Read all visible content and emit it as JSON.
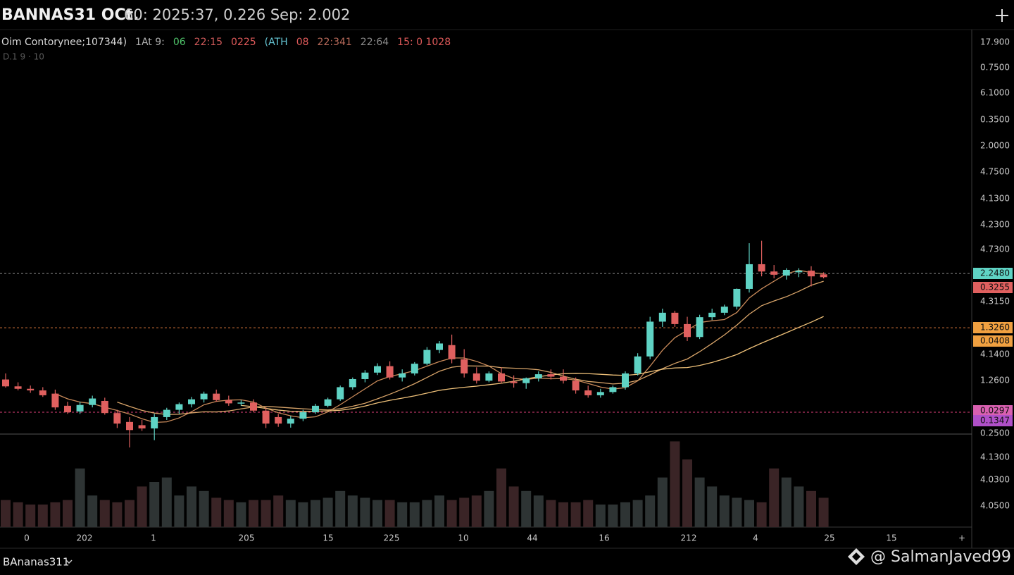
{
  "header": {
    "title": "BANNAS31 OCt.",
    "title_info": "60: 2025:37, 0.226 Sep: 2.002",
    "info_items": [
      {
        "text": "Oim Contorynee;107344)",
        "color": "#d8d8d8"
      },
      {
        "text": "1At 9:",
        "color": "#b0b0b0"
      },
      {
        "text": "06",
        "color": "#4fc36a"
      },
      {
        "text": "22:15",
        "color": "#d05a5a"
      },
      {
        "text": "0225",
        "color": "#e05a5a"
      },
      {
        "text": "(ATH",
        "color": "#66c7d6"
      },
      {
        "text": "08",
        "color": "#e05a5a"
      },
      {
        "text": "22:341",
        "color": "#b86a5a"
      },
      {
        "text": "22:64",
        "color": "#8a8a8a"
      },
      {
        "text": "15: 0 1028",
        "color": "#e05a5a"
      }
    ],
    "sub_info": "D.1 9 · 10"
  },
  "chart_data": {
    "type": "candlestick",
    "up_color": "#5fd3c4",
    "down_color": "#e0605f",
    "ylim": [
      -4,
      100
    ],
    "open": [
      13.5,
      11.8,
      11.2,
      10.8,
      10.0,
      7.0,
      5.6,
      7.2,
      8.2,
      5.2,
      3.0,
      2.2,
      1.4,
      4.2,
      6.0,
      7.4,
      8.6,
      10.0,
      8.4,
      7.6,
      7.8,
      5.8,
      4.2,
      2.6,
      3.8,
      5.4,
      7.0,
      8.6,
      11.6,
      13.6,
      15.2,
      16.8,
      14.0,
      15.0,
      17.4,
      20.8,
      22.0,
      18.5,
      15.0,
      13.2,
      15.0,
      13.0,
      12.6,
      13.8,
      14.8,
      14.2,
      13.2,
      10.8,
      9.6,
      10.4,
      11.6,
      15.0,
      19.2,
      27.8,
      30.0,
      27.2,
      24.0,
      28.9,
      30.0,
      31.5,
      35.9,
      42.0,
      40.2,
      39.2,
      40.0,
      40.4,
      39.5
    ],
    "high": [
      15,
      12.8,
      12.0,
      11.6,
      11.0,
      8.0,
      8.0,
      9.5,
      9.0,
      6.0,
      4.2,
      3.5,
      5.0,
      6.5,
      7.8,
      9.2,
      10.5,
      11.0,
      9.5,
      8.4,
      8.6,
      6.5,
      5.0,
      4.5,
      6.0,
      7.5,
      9.0,
      12.0,
      14.0,
      15.8,
      17.5,
      18.0,
      16.0,
      17.8,
      21.5,
      23.0,
      24.6,
      21.0,
      16.5,
      15.5,
      16.5,
      14.5,
      14.0,
      15.5,
      16.0,
      16.0,
      14.0,
      12.0,
      11.2,
      12.0,
      15.5,
      20.0,
      29.0,
      31.0,
      30.5,
      29.0,
      29.5,
      31.0,
      32.0,
      36.0,
      47.2,
      47.8,
      41.8,
      41.0,
      41.0,
      41.5,
      40.0
    ],
    "low": [
      11.5,
      10.8,
      10.2,
      9.2,
      6.0,
      5.0,
      5.0,
      6.6,
      4.8,
      1.5,
      -3.3,
      0.8,
      -1.5,
      3.5,
      5.0,
      6.6,
      7.8,
      8.0,
      7.0,
      7.0,
      5.4,
      1.5,
      1.8,
      1.6,
      3.2,
      5.0,
      6.6,
      8.2,
      11.0,
      12.8,
      14.6,
      13.5,
      13.0,
      14.5,
      17.0,
      20.0,
      17.5,
      14.0,
      12.5,
      12.8,
      12.5,
      11.5,
      11.2,
      13.0,
      13.5,
      12.5,
      10.0,
      9.0,
      9.0,
      10.0,
      11.0,
      14.5,
      18.5,
      26.5,
      26.5,
      23.0,
      23.5,
      28.2,
      29.4,
      30.8,
      35.0,
      39.0,
      38.5,
      38.2,
      38.8,
      36.5,
      38.5
    ],
    "close": [
      11.8,
      11.2,
      10.8,
      9.6,
      6.6,
      5.4,
      7.2,
      8.8,
      5.2,
      2.6,
      1.0,
      1.4,
      4.2,
      6.0,
      7.4,
      8.6,
      10.0,
      8.4,
      7.6,
      7.8,
      5.8,
      2.6,
      2.6,
      3.8,
      5.4,
      7.0,
      8.6,
      11.6,
      13.6,
      15.2,
      16.8,
      14.0,
      15.0,
      17.4,
      20.8,
      22.4,
      18.5,
      15.0,
      13.2,
      15.0,
      13.0,
      12.6,
      13.8,
      14.8,
      14.2,
      13.2,
      10.8,
      9.6,
      10.4,
      11.6,
      15.0,
      19.2,
      27.8,
      30.0,
      27.2,
      24.0,
      28.9,
      30.0,
      31.5,
      35.9,
      42.0,
      40.2,
      39.4,
      40.6,
      40.4,
      39.0,
      38.8
    ],
    "volume": [
      6,
      5.5,
      5,
      5,
      5.5,
      6,
      13,
      7,
      6,
      5.5,
      6,
      9,
      10,
      11,
      7,
      9,
      8,
      6.5,
      6,
      5.5,
      6,
      6,
      7,
      6,
      5.5,
      6,
      6.5,
      8,
      7,
      6.5,
      6,
      6,
      5.5,
      5.5,
      6,
      7,
      6,
      6.5,
      7,
      8,
      13,
      9,
      8,
      7,
      6,
      5.5,
      5.5,
      6,
      5,
      5,
      5.5,
      6,
      7,
      11,
      19,
      15,
      11,
      9,
      7,
      6.5,
      6,
      5.5,
      13,
      11,
      9,
      8,
      6.5
    ],
    "volume_lim": [
      0,
      20
    ],
    "moving_averages": [
      {
        "period": 5,
        "color": "#c98a5a"
      },
      {
        "period": 10,
        "color": "#d9a56a"
      },
      {
        "period": 20,
        "color": "#f0c27a"
      }
    ],
    "levels": [
      {
        "value": 39.7,
        "color": "#8a8a8a"
      },
      {
        "value": 26.3,
        "color": "#d8763a"
      },
      {
        "value": 5.4,
        "color": "#e0407a"
      }
    ],
    "price_tags": [
      {
        "label": "2.2480",
        "color": "#5fd3c4"
      },
      {
        "label": "0.3255",
        "color": "#e0605f"
      },
      {
        "label": "1.3260",
        "color": "#f0a040"
      },
      {
        "label": "0.0408",
        "color": "#f0a040"
      },
      {
        "label": "0.0297",
        "color": "#d860b0"
      },
      {
        "label": "0.1347",
        "color": "#b050c8"
      }
    ],
    "y_axis_labels": [
      "17.900",
      "0.7500",
      "6.1000",
      "0.3500",
      "2.0000",
      "4.7500",
      "4.1300",
      "4.2300",
      "4.7300",
      "4.3150",
      "4.1400",
      "1.2600",
      "0.2500",
      "4.1300",
      "4.0300",
      "4.0500"
    ],
    "x_axis_labels": [
      "0",
      "202",
      "1",
      "205",
      "15",
      "225",
      "10",
      "44",
      "16",
      "212",
      "4",
      "25",
      "15",
      "+"
    ]
  },
  "footer": {
    "symbol": "BAnanas311",
    "watermark": "@ SalmanJaved99"
  }
}
